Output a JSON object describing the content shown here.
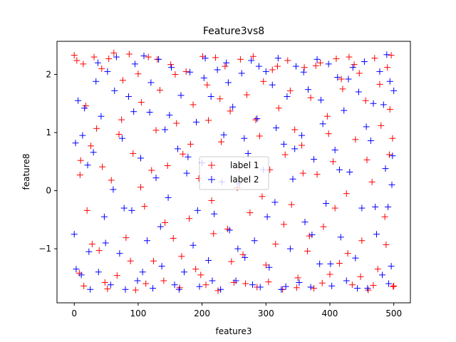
{
  "chart_data": {
    "type": "scatter",
    "title": "Feature3vs8",
    "xlabel": "feature3",
    "ylabel": "feature8",
    "xlim": [
      -27,
      526
    ],
    "ylim": [
      -1.93,
      2.57
    ],
    "x_ticks": [
      0,
      100,
      200,
      300,
      400,
      500
    ],
    "x_tick_labels": [
      "0",
      "100",
      "200",
      "300",
      "400",
      "500"
    ],
    "y_ticks": [
      -1,
      0,
      1,
      2
    ],
    "y_tick_labels": [
      "−1",
      "0",
      "1",
      "2"
    ],
    "grid": false,
    "legend_position": "center",
    "marker": "+",
    "series": [
      {
        "name": "label 1",
        "color": "#ff0000",
        "points": [
          [
            0,
            2.33
          ],
          [
            4,
            2.24
          ],
          [
            9,
            0.27
          ],
          [
            10,
            0.52
          ],
          [
            14,
            2.18
          ],
          [
            15,
            -1.64
          ],
          [
            20,
            -0.34
          ],
          [
            26,
            0.77
          ],
          [
            31,
            2.3
          ],
          [
            35,
            1.07
          ],
          [
            39,
            -1.03
          ],
          [
            43,
            2.1
          ],
          [
            48,
            -1.58
          ],
          [
            54,
            2.27
          ],
          [
            58,
            0.18
          ],
          [
            62,
            2.37
          ],
          [
            67,
            -1.46
          ],
          [
            70,
            0.97
          ],
          [
            76,
            1.9
          ],
          [
            81,
            -0.81
          ],
          [
            86,
            2.35
          ],
          [
            92,
            0.64
          ],
          [
            96,
            -1.71
          ],
          [
            100,
            2.01
          ],
          [
            105,
            1.52
          ],
          [
            110,
            -0.27
          ],
          [
            116,
            2.3
          ],
          [
            121,
            0.35
          ],
          [
            124,
            -1.21
          ],
          [
            130,
            2.26
          ],
          [
            134,
            1.73
          ],
          [
            140,
            -1.55
          ],
          [
            146,
            0.43
          ],
          [
            151,
            2.17
          ],
          [
            155,
            -0.82
          ],
          [
            160,
            1.16
          ],
          [
            165,
            -1.67
          ],
          [
            170,
            0.63
          ],
          [
            175,
            2.05
          ],
          [
            180,
            -0.48
          ],
          [
            186,
            1.48
          ],
          [
            190,
            -1.35
          ],
          [
            195,
            0.21
          ],
          [
            201,
            2.31
          ],
          [
            206,
            -1.62
          ],
          [
            210,
            1.21
          ],
          [
            215,
            -0.17
          ],
          [
            221,
            2.29
          ],
          [
            225,
            -1.72
          ],
          [
            230,
            0.84
          ],
          [
            236,
            2.14
          ],
          [
            240,
            -0.66
          ],
          [
            244,
            1.37
          ],
          [
            250,
            -1.58
          ],
          [
            255,
            0.05
          ],
          [
            260,
            2.26
          ],
          [
            264,
            -1.1
          ],
          [
            270,
            1.65
          ],
          [
            275,
            -0.38
          ],
          [
            280,
            2.31
          ],
          [
            286,
            -1.66
          ],
          [
            290,
            0.94
          ],
          [
            296,
            1.88
          ],
          [
            300,
            -1.28
          ],
          [
            306,
            0.36
          ],
          [
            310,
            2.08
          ],
          [
            315,
            -0.92
          ],
          [
            320,
            1.42
          ],
          [
            326,
            -1.7
          ],
          [
            330,
            0.62
          ],
          [
            334,
            2.24
          ],
          [
            340,
            -0.24
          ],
          [
            345,
            1.05
          ],
          [
            350,
            -1.5
          ],
          [
            356,
            0.78
          ],
          [
            360,
            2.12
          ],
          [
            365,
            -1.04
          ],
          [
            370,
            1.6
          ],
          [
            375,
            -1.68
          ],
          [
            380,
            0.28
          ],
          [
            385,
            2.2
          ],
          [
            390,
            -0.62
          ],
          [
            396,
            1.28
          ],
          [
            400,
            -1.44
          ],
          [
            405,
            0.5
          ],
          [
            410,
            2.27
          ],
          [
            415,
            -1.25
          ],
          [
            420,
            1.75
          ],
          [
            426,
            -0.05
          ],
          [
            430,
            2.3
          ],
          [
            435,
            -1.62
          ],
          [
            440,
            0.88
          ],
          [
            446,
            2.02
          ],
          [
            450,
            -0.86
          ],
          [
            456,
            1.55
          ],
          [
            460,
            -1.71
          ],
          [
            466,
            0.15
          ],
          [
            470,
            2.28
          ],
          [
            475,
            -1.35
          ],
          [
            480,
            1.12
          ],
          [
            486,
            -0.45
          ],
          [
            490,
            2.12
          ],
          [
            493,
            0.62
          ],
          [
            496,
            2.33
          ],
          [
            498,
            0.9
          ],
          [
            499,
            -1.65
          ],
          [
            8,
            -1.42
          ],
          [
            18,
            1.46
          ],
          [
            28,
            -0.92
          ],
          [
            44,
            0.41
          ],
          [
            52,
            -1.69
          ],
          [
            74,
            1.22
          ],
          [
            88,
            -1.21
          ],
          [
            104,
            0.06
          ],
          [
            112,
            -1.6
          ],
          [
            128,
            1.04
          ],
          [
            142,
            -0.55
          ],
          [
            158,
            2.0
          ],
          [
            168,
            -1.13
          ],
          [
            182,
            0.8
          ],
          [
            198,
            -1.45
          ],
          [
            208,
            1.82
          ],
          [
            218,
            -0.74
          ],
          [
            228,
            1.58
          ],
          [
            246,
            -1.22
          ],
          [
            258,
            0.4
          ],
          [
            268,
            -1.6
          ],
          [
            284,
            1.22
          ],
          [
            294,
            -0.1
          ],
          [
            304,
            -1.57
          ],
          [
            318,
            2.14
          ],
          [
            328,
            -0.58
          ],
          [
            338,
            1.72
          ],
          [
            348,
            -1.67
          ],
          [
            358,
            0.3
          ],
          [
            368,
            -0.78
          ],
          [
            378,
            2.15
          ],
          [
            388,
            -1.59
          ],
          [
            398,
            0.98
          ],
          [
            408,
            -0.3
          ],
          [
            418,
            1.92
          ],
          [
            428,
            -1.08
          ],
          [
            438,
            2.17
          ],
          [
            448,
            -1.48
          ],
          [
            458,
            0.53
          ],
          [
            468,
            -1.63
          ],
          [
            478,
            1.83
          ],
          [
            488,
            -0.93
          ],
          [
            494,
            1.4
          ],
          [
            500,
            -1.64
          ]
        ]
      },
      {
        "name": "label 2",
        "color": "#0000ff",
        "points": [
          [
            0,
            -0.75
          ],
          [
            2,
            0.82
          ],
          [
            6,
            1.55
          ],
          [
            11,
            -1.45
          ],
          [
            16,
            1.42
          ],
          [
            21,
            0.44
          ],
          [
            25,
            -1.7
          ],
          [
            30,
            0.66
          ],
          [
            34,
            1.88
          ],
          [
            38,
            -1.4
          ],
          [
            42,
            1.28
          ],
          [
            47,
            -0.45
          ],
          [
            52,
            2.05
          ],
          [
            57,
            -1.62
          ],
          [
            61,
            0.02
          ],
          [
            66,
            2.3
          ],
          [
            71,
            -1.08
          ],
          [
            75,
            0.9
          ],
          [
            80,
            -1.7
          ],
          [
            85,
            1.62
          ],
          [
            90,
            -0.34
          ],
          [
            95,
            2.18
          ],
          [
            99,
            -1.55
          ],
          [
            104,
            0.56
          ],
          [
            109,
            2.32
          ],
          [
            114,
            -0.86
          ],
          [
            118,
            1.35
          ],
          [
            123,
            -1.68
          ],
          [
            128,
            0.22
          ],
          [
            132,
            2.26
          ],
          [
            137,
            -1.3
          ],
          [
            142,
            1.05
          ],
          [
            147,
            -0.12
          ],
          [
            152,
            2.12
          ],
          [
            157,
            -1.62
          ],
          [
            162,
            0.72
          ],
          [
            167,
            1.64
          ],
          [
            172,
            -1.4
          ],
          [
            176,
            0.3
          ],
          [
            181,
            2.04
          ],
          [
            186,
            -0.94
          ],
          [
            191,
            1.18
          ],
          [
            196,
            -1.65
          ],
          [
            200,
            0.48
          ],
          [
            205,
            2.28
          ],
          [
            210,
            -1.2
          ],
          [
            214,
            1.62
          ],
          [
            219,
            -0.4
          ],
          [
            224,
            2.08
          ],
          [
            229,
            -1.7
          ],
          [
            234,
            0.96
          ],
          [
            238,
            2.2
          ],
          [
            243,
            -0.68
          ],
          [
            248,
            1.44
          ],
          [
            253,
            -1.55
          ],
          [
            258,
            0.12
          ],
          [
            262,
            2.02
          ],
          [
            267,
            -1.15
          ],
          [
            272,
            0.64
          ],
          [
            277,
            2.24
          ],
          [
            282,
            -0.86
          ],
          [
            286,
            1.24
          ],
          [
            291,
            -1.66
          ],
          [
            296,
            0.36
          ],
          [
            300,
            2.05
          ],
          [
            305,
            -1.32
          ],
          [
            310,
            1.82
          ],
          [
            314,
            -0.2
          ],
          [
            319,
            2.28
          ],
          [
            324,
            -1.7
          ],
          [
            328,
            0.8
          ],
          [
            333,
            1.62
          ],
          [
            338,
            -1.0
          ],
          [
            342,
            0.2
          ],
          [
            347,
            2.14
          ],
          [
            352,
            -1.58
          ],
          [
            356,
            0.95
          ],
          [
            361,
            -0.54
          ],
          [
            366,
            1.74
          ],
          [
            370,
            -1.66
          ],
          [
            375,
            0.54
          ],
          [
            380,
            2.26
          ],
          [
            384,
            -1.26
          ],
          [
            389,
            1.15
          ],
          [
            394,
            -0.22
          ],
          [
            398,
            2.18
          ],
          [
            403,
            -1.64
          ],
          [
            408,
            0.7
          ],
          [
            412,
            1.95
          ],
          [
            417,
            -0.8
          ],
          [
            422,
            1.38
          ],
          [
            426,
            -1.55
          ],
          [
            431,
            0.32
          ],
          [
            436,
            2.12
          ],
          [
            440,
            -1.16
          ],
          [
            445,
            1.7
          ],
          [
            450,
            -0.3
          ],
          [
            454,
            2.22
          ],
          [
            459,
            -1.68
          ],
          [
            464,
            0.86
          ],
          [
            468,
            1.5
          ],
          [
            473,
            -0.75
          ],
          [
            478,
            2.05
          ],
          [
            482,
            -1.45
          ],
          [
            487,
            0.38
          ],
          [
            491,
            -0.28
          ],
          [
            494,
            1.88
          ],
          [
            496,
            -1.3
          ],
          [
            498,
            0.6
          ],
          [
            500,
            1.72
          ],
          [
            3,
            -1.35
          ],
          [
            13,
            0.95
          ],
          [
            23,
            -1.05
          ],
          [
            37,
            2.2
          ],
          [
            49,
            -0.9
          ],
          [
            63,
            1.72
          ],
          [
            78,
            -0.3
          ],
          [
            93,
            1.36
          ],
          [
            107,
            -1.4
          ],
          [
            120,
            1.86
          ],
          [
            135,
            -0.62
          ],
          [
            149,
            1.3
          ],
          [
            164,
            -1.7
          ],
          [
            178,
            0.58
          ],
          [
            193,
            -0.34
          ],
          [
            203,
            1.94
          ],
          [
            216,
            -1.55
          ],
          [
            231,
            0.15
          ],
          [
            241,
            1.86
          ],
          [
            256,
            -1.0
          ],
          [
            266,
            0.9
          ],
          [
            279,
            -1.62
          ],
          [
            289,
            2.14
          ],
          [
            302,
            -0.45
          ],
          [
            316,
            1.08
          ],
          [
            331,
            -1.65
          ],
          [
            345,
            0.72
          ],
          [
            359,
            2.04
          ],
          [
            372,
            -0.76
          ],
          [
            386,
            1.56
          ],
          [
            401,
            -1.26
          ],
          [
            415,
            0.36
          ],
          [
            429,
            1.92
          ],
          [
            443,
            -1.68
          ],
          [
            457,
            1.1
          ],
          [
            471,
            -0.28
          ],
          [
            484,
            1.48
          ],
          [
            492,
            -1.6
          ],
          [
            497,
            0.1
          ],
          [
            489,
            2.34
          ]
        ]
      }
    ]
  }
}
